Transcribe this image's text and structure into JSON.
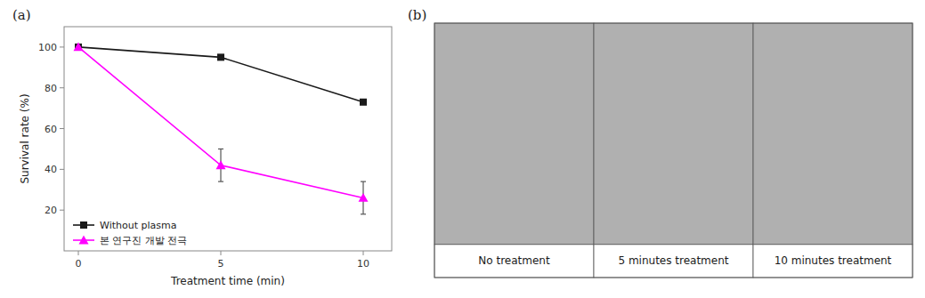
{
  "chart_data": [
    {
      "type": "line",
      "title": "(a)",
      "x": [
        0,
        5,
        10
      ],
      "series": [
        {
          "name": "Without plasma",
          "color": "#1a1a1a",
          "marker": "square",
          "values": [
            100,
            95,
            73
          ]
        },
        {
          "name": "본 연구진 개발 전극",
          "color": "#FF00FF",
          "marker": "triangle",
          "values": [
            100,
            42,
            26
          ],
          "errors": [
            0,
            8,
            8
          ]
        }
      ],
      "x_label": "Treatment time (min)",
      "y_label": "Survival rate (%)",
      "xlim": [
        -0.5,
        11
      ],
      "xticks": [
        0,
        5,
        10
      ],
      "ylim": [
        0,
        110
      ],
      "yticks": [
        20,
        40,
        60,
        80,
        100
      ],
      "legend": "lower left"
    },
    {
      "type": "image",
      "title": "(b)",
      "categories": [
        "No treatment",
        "5 minutes treatment",
        "10 minutes treatment"
      ],
      "color": "#b0b0b0"
    }
  ]
}
